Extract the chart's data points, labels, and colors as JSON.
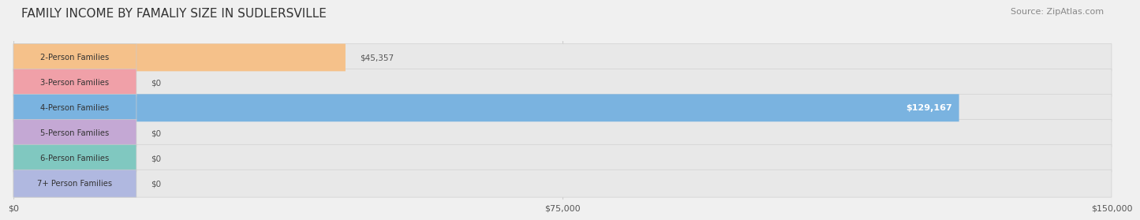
{
  "title": "FAMILY INCOME BY FAMALIY SIZE IN SUDLERSVILLE",
  "source": "Source: ZipAtlas.com",
  "categories": [
    "2-Person Families",
    "3-Person Families",
    "4-Person Families",
    "5-Person Families",
    "6-Person Families",
    "7+ Person Families"
  ],
  "values": [
    45357,
    0,
    129167,
    0,
    0,
    0
  ],
  "bar_colors": [
    "#f5c18a",
    "#f0a0a8",
    "#7ab3e0",
    "#c4a8d4",
    "#80c8c0",
    "#b0b8e0"
  ],
  "value_labels": [
    "$45,357",
    "$0",
    "$129,167",
    "$0",
    "$0",
    "$0"
  ],
  "value_label_colors": [
    "#555555",
    "#555555",
    "#ffffff",
    "#555555",
    "#555555",
    "#555555"
  ],
  "xlim": [
    0,
    150000
  ],
  "xticks": [
    0,
    75000,
    150000
  ],
  "xticklabels": [
    "$0",
    "$75,000",
    "$150,000"
  ],
  "background_color": "#f0f0f0",
  "bar_background_color": "#e8e8e8",
  "title_fontsize": 11,
  "source_fontsize": 8
}
